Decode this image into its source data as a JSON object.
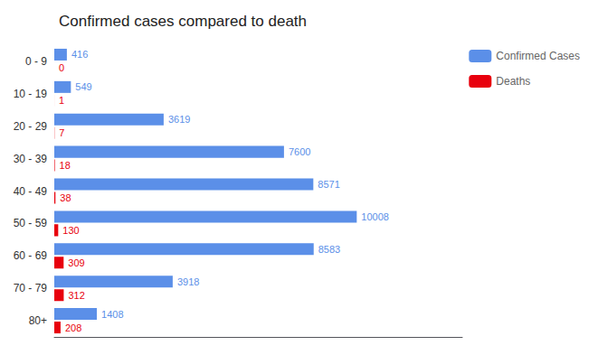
{
  "chart_data": {
    "type": "bar",
    "title": "Confirmed cases compared to death",
    "orientation": "horizontal",
    "categories": [
      "0 - 9",
      "10 - 19",
      "20 - 29",
      "30 - 39",
      "40 - 49",
      "50 - 59",
      "60 - 69",
      "70 - 79",
      "80+"
    ],
    "series": [
      {
        "name": "Confirmed Cases",
        "color": "#5B8FE8",
        "values": [
          416,
          549,
          3619,
          7600,
          8571,
          10008,
          8583,
          3918,
          1408
        ]
      },
      {
        "name": "Deaths",
        "color": "#E8000D",
        "values": [
          0,
          1,
          7,
          18,
          38,
          130,
          309,
          312,
          208
        ]
      }
    ],
    "xlim": [
      0,
      13500
    ],
    "tick_labels": "y",
    "data_labels": true,
    "grid": false,
    "legend": "upper right"
  }
}
